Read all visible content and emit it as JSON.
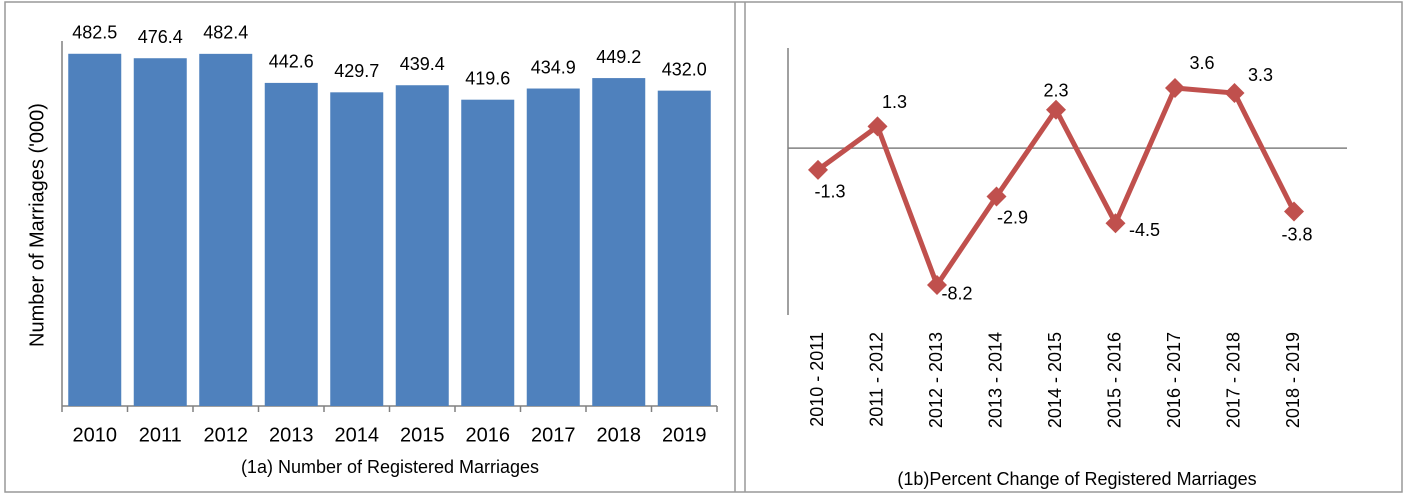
{
  "chart_data": [
    {
      "type": "bar",
      "xlabel": "(1a) Number of Registered Marriages",
      "ylabel": "Number of Marriages ('000)",
      "categories": [
        "2010",
        "2011",
        "2012",
        "2013",
        "2014",
        "2015",
        "2016",
        "2017",
        "2018",
        "2019"
      ],
      "values": [
        482.5,
        476.4,
        482.4,
        442.6,
        429.7,
        439.4,
        419.6,
        434.9,
        449.2,
        432.0
      ],
      "value_labels": [
        "482.5",
        "476.4",
        "482.4",
        "442.6",
        "429.7",
        "439.4",
        "419.6",
        "434.9",
        "449.2",
        "432.0"
      ],
      "color": "#4f81bd",
      "ylim": [
        0,
        500
      ]
    },
    {
      "type": "line",
      "xlabel": "(1b)Percent Change of Registered Marriages",
      "categories": [
        "2010 - 2011",
        "2011 - 2012",
        "2012 - 2013",
        "2013 - 2014",
        "2014 - 2015",
        "2015 - 2016",
        "2016 - 2017",
        "2017 - 2018",
        "2018 - 2019"
      ],
      "values": [
        -1.3,
        1.3,
        -8.2,
        -2.9,
        2.3,
        -4.5,
        3.6,
        3.3,
        -3.8
      ],
      "color": "#c0504d",
      "ylim": [
        -10,
        6
      ]
    }
  ]
}
